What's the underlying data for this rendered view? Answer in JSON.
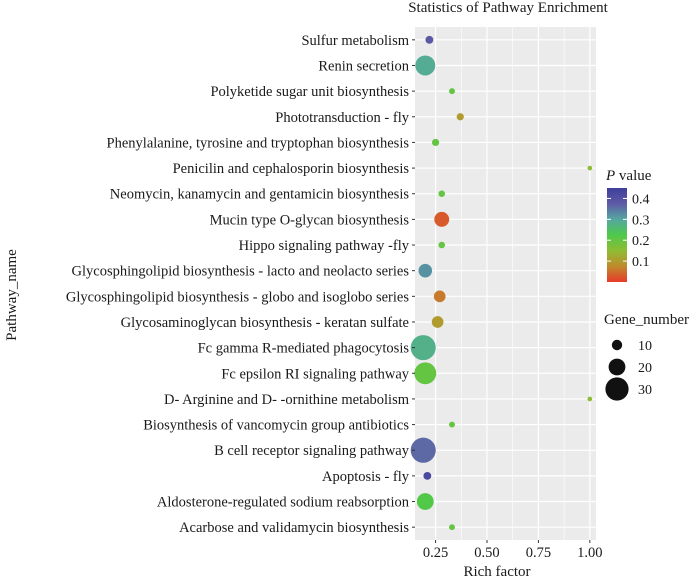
{
  "chart_data": {
    "type": "scatter",
    "title": "Statistics of Pathway Enrichment",
    "xlabel": "Rich factor",
    "ylabel": "Pathway_name",
    "xlim": [
      0.15,
      1.03
    ],
    "xticks": [
      0.25,
      0.5,
      0.75,
      1.0
    ],
    "xtick_labels": [
      "0.25",
      "0.50",
      "0.75",
      "1.00"
    ],
    "grid": true,
    "categories": [
      "Sulfur metabolism",
      "Renin secretion",
      "Polyketide sugar unit biosynthesis",
      "Phototransduction - fly",
      "Phenylalanine, tyrosine and tryptophan biosynthesis",
      "Penicilin and cephalosporin biosynthesis",
      "Neomycin, kanamycin and gentamicin biosynthesis",
      "Mucin type O-glycan biosynthesis",
      "Hippo signaling pathway -fly",
      "Glycosphingolipid biosynthesis - lacto and neolacto series",
      "Glycosphingolipid biosynthesis - globo and isoglobo series",
      "Glycosaminoglycan biosynthesis - keratan sulfate",
      "Fc gamma R-mediated phagocytosis",
      "Fc epsilon RI signaling pathway",
      "D- Arginine and D- -ornithine metabolism",
      "Biosynthesis of vancomycin group antibiotics",
      "B cell receptor signaling pathway",
      "Apoptosis - fly",
      "Aldosterone-regulated sodium reabsorption",
      "Acarbose and validamycin biosynthesis"
    ],
    "points": [
      {
        "pathway": "Sulfur metabolism",
        "rich_factor": 0.22,
        "p_value": 0.38,
        "gene_number": 6
      },
      {
        "pathway": "Renin secretion",
        "rich_factor": 0.2,
        "p_value": 0.29,
        "gene_number": 25
      },
      {
        "pathway": "Polyketide sugar unit biosynthesis",
        "rich_factor": 0.33,
        "p_value": 0.2,
        "gene_number": 3
      },
      {
        "pathway": "Phototransduction - fly",
        "rich_factor": 0.37,
        "p_value": 0.1,
        "gene_number": 5
      },
      {
        "pathway": "Phenylalanine, tyrosine and tryptophan biosynthesis",
        "rich_factor": 0.25,
        "p_value": 0.2,
        "gene_number": 5
      },
      {
        "pathway": "Penicilin and cephalosporin biosynthesis",
        "rich_factor": 1.0,
        "p_value": 0.15,
        "gene_number": 1
      },
      {
        "pathway": "Neomycin, kanamycin and gentamicin biosynthesis",
        "rich_factor": 0.28,
        "p_value": 0.2,
        "gene_number": 4
      },
      {
        "pathway": "Mucin type O-glycan biosynthesis",
        "rich_factor": 0.28,
        "p_value": 0.03,
        "gene_number": 17
      },
      {
        "pathway": "Hippo signaling pathway -fly",
        "rich_factor": 0.28,
        "p_value": 0.2,
        "gene_number": 4
      },
      {
        "pathway": "Glycosphingolipid biosynthesis - lacto and neolacto series",
        "rich_factor": 0.2,
        "p_value": 0.32,
        "gene_number": 15
      },
      {
        "pathway": "Glycosphingolipid biosynthesis - globo and isoglobo series",
        "rich_factor": 0.27,
        "p_value": 0.06,
        "gene_number": 12
      },
      {
        "pathway": "Glycosaminoglycan biosynthesis - keratan sulfate",
        "rich_factor": 0.26,
        "p_value": 0.1,
        "gene_number": 12
      },
      {
        "pathway": "Fc gamma R-mediated phagocytosis",
        "rich_factor": 0.19,
        "p_value": 0.28,
        "gene_number": 33
      },
      {
        "pathway": "Fc epsilon RI signaling pathway",
        "rich_factor": 0.2,
        "p_value": 0.2,
        "gene_number": 28
      },
      {
        "pathway": "D- Arginine and D- -ornithine metabolism",
        "rich_factor": 1.0,
        "p_value": 0.15,
        "gene_number": 1
      },
      {
        "pathway": "Biosynthesis of vancomycin group antibiotics",
        "rich_factor": 0.33,
        "p_value": 0.2,
        "gene_number": 3
      },
      {
        "pathway": "B cell receptor signaling pathway",
        "rich_factor": 0.19,
        "p_value": 0.36,
        "gene_number": 33
      },
      {
        "pathway": "Apoptosis - fly",
        "rich_factor": 0.21,
        "p_value": 0.42,
        "gene_number": 6
      },
      {
        "pathway": "Aldosterone-regulated sodium reabsorption",
        "rich_factor": 0.2,
        "p_value": 0.22,
        "gene_number": 20
      },
      {
        "pathway": "Acarbose and validamycin biosynthesis",
        "rich_factor": 0.33,
        "p_value": 0.2,
        "gene_number": 3
      }
    ],
    "color_legend": {
      "title_italic": "P",
      "title_rest": " value",
      "range": [
        0.0,
        0.45
      ],
      "ticks": [
        0.1,
        0.2,
        0.3,
        0.4
      ],
      "tick_labels": [
        "0.1",
        "0.2",
        "0.3",
        "0.4"
      ],
      "colors": [
        "#e83a2c",
        "#c08a2c",
        "#8fbc34",
        "#4ec94a",
        "#55a7a0",
        "#5e5aa6",
        "#3f3f9b"
      ]
    },
    "size_legend": {
      "title": "Gene_number",
      "values": [
        10,
        20,
        30
      ],
      "labels": [
        "10",
        "20",
        "30"
      ]
    },
    "panel_background": "#ebebeb",
    "grid_color": "#ffffff"
  }
}
